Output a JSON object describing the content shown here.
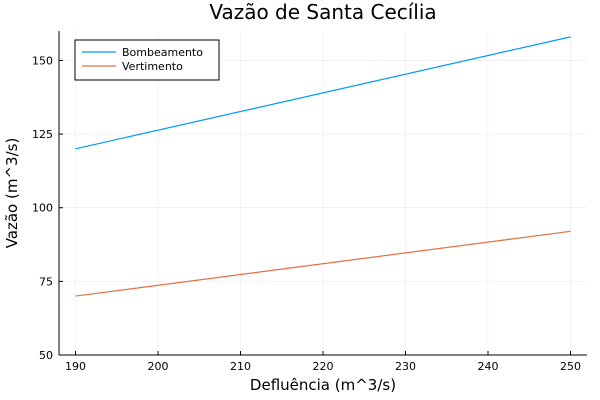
{
  "chart_data": {
    "type": "line",
    "title": "Vazão de Santa Cecília",
    "xlabel": "Defluência (m^3/s)",
    "ylabel": "Vazão (m^3/s)",
    "xlim": [
      188,
      252
    ],
    "ylim": [
      50,
      160
    ],
    "xticks": [
      190,
      200,
      210,
      220,
      230,
      240,
      250
    ],
    "yticks": [
      50,
      75,
      100,
      125,
      150
    ],
    "grid": true,
    "legend_position": "top-left",
    "series": [
      {
        "name": "Bombeamento",
        "color": "#009af9",
        "x": [
          190,
          250
        ],
        "y": [
          120,
          158
        ]
      },
      {
        "name": "Vertimento",
        "color": "#e26f46",
        "x": [
          190,
          250
        ],
        "y": [
          70,
          92
        ]
      }
    ]
  }
}
